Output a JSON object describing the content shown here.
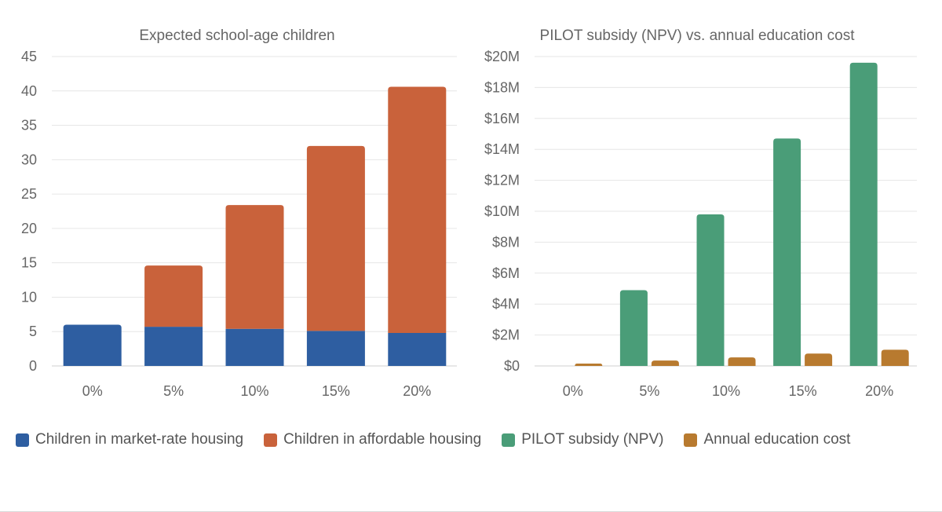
{
  "chart_data": [
    {
      "type": "bar",
      "stacked": true,
      "title": "Expected school-age children",
      "categories": [
        "0%",
        "5%",
        "10%",
        "15%",
        "20%"
      ],
      "ylim": [
        0,
        45
      ],
      "yticks": [
        0,
        5,
        10,
        15,
        20,
        25,
        30,
        35,
        40,
        45
      ],
      "ytick_labels": [
        "0",
        "5",
        "10",
        "15",
        "20",
        "25",
        "30",
        "35",
        "40",
        "45"
      ],
      "grid": true,
      "series": [
        {
          "name": "Children in market-rate housing",
          "color": "#2e5ea1",
          "values": [
            6.0,
            5.7,
            5.4,
            5.1,
            4.8
          ]
        },
        {
          "name": "Children in affordable housing",
          "color": "#c9623b",
          "values": [
            0,
            8.9,
            18.0,
            26.9,
            35.8
          ]
        }
      ]
    },
    {
      "type": "bar",
      "stacked": false,
      "title": "PILOT subsidy (NPV) vs. annual education cost",
      "categories": [
        "0%",
        "5%",
        "10%",
        "15%",
        "20%"
      ],
      "ylim": [
        0,
        20
      ],
      "yticks": [
        0,
        2,
        4,
        6,
        8,
        10,
        12,
        14,
        16,
        18,
        20
      ],
      "ytick_labels": [
        "$0",
        "$2M",
        "$4M",
        "$6M",
        "$8M",
        "$10M",
        "$12M",
        "$14M",
        "$16M",
        "$18M",
        "$20M"
      ],
      "units": "$M",
      "grid": true,
      "series": [
        {
          "name": "PILOT subsidy (NPV)",
          "color": "#4a9d78",
          "values": [
            0,
            4.9,
            9.8,
            14.7,
            19.6
          ]
        },
        {
          "name": "Annual education cost",
          "color": "#b87a2f",
          "values": [
            0.15,
            0.35,
            0.55,
            0.8,
            1.05
          ]
        }
      ]
    }
  ],
  "legend": [
    {
      "label": "Children in market-rate housing",
      "color": "#2e5ea1"
    },
    {
      "label": "Children in affordable housing",
      "color": "#c9623b"
    },
    {
      "label": "PILOT subsidy (NPV)",
      "color": "#4a9d78"
    },
    {
      "label": "Annual education cost",
      "color": "#b87a2f"
    }
  ]
}
